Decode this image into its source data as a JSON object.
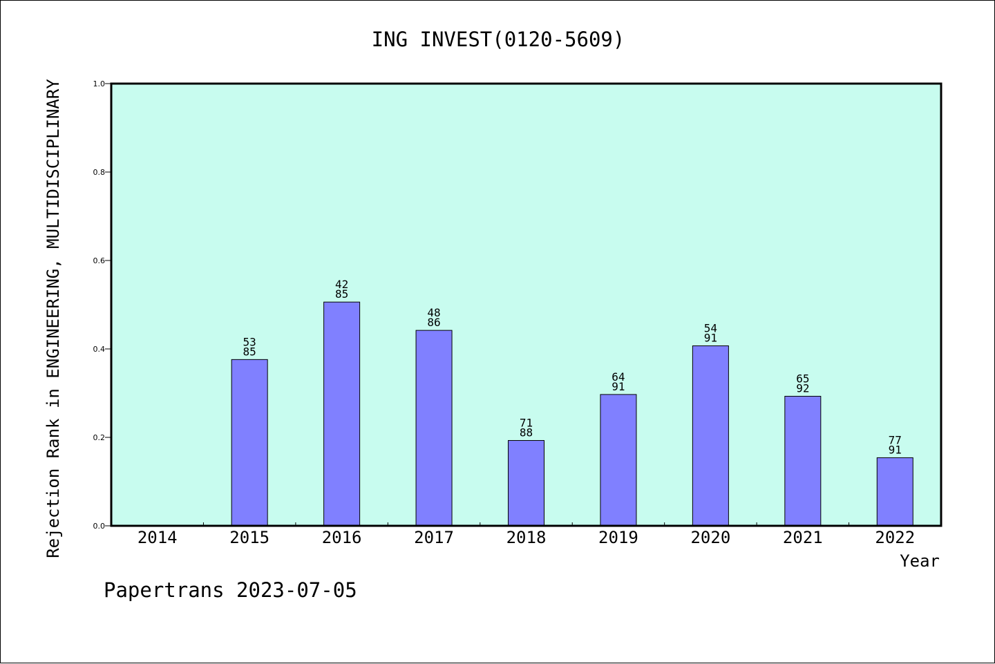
{
  "chart_data": {
    "type": "bar",
    "title": "ING INVEST(0120-5609)",
    "xlabel": "Year",
    "ylabel": "Rejection Rank in ENGINEERING, MULTIDISCIPLINARY",
    "footer": "Papertrans 2023-07-05",
    "categories": [
      "2014",
      "2015",
      "2016",
      "2017",
      "2018",
      "2019",
      "2020",
      "2021",
      "2022"
    ],
    "values": [
      null,
      0.376,
      0.506,
      0.442,
      0.193,
      0.297,
      0.407,
      0.293,
      0.154
    ],
    "rank_labels": [
      [
        "",
        ""
      ],
      [
        "53",
        "85"
      ],
      [
        "42",
        "85"
      ],
      [
        "48",
        "86"
      ],
      [
        "71",
        "88"
      ],
      [
        "64",
        "91"
      ],
      [
        "54",
        "91"
      ],
      [
        "65",
        "92"
      ],
      [
        "77",
        "91"
      ]
    ],
    "ylim": [
      0,
      1
    ],
    "yticks": [
      "0.0",
      "0.2",
      "0.4",
      "0.6",
      "0.8",
      "1.0"
    ],
    "grid": false,
    "legend": "none",
    "colors": {
      "plot_background": "#c8fcef",
      "bar_fill": "#8080ff",
      "bar_stroke": "#000000",
      "axis": "#000000"
    }
  }
}
